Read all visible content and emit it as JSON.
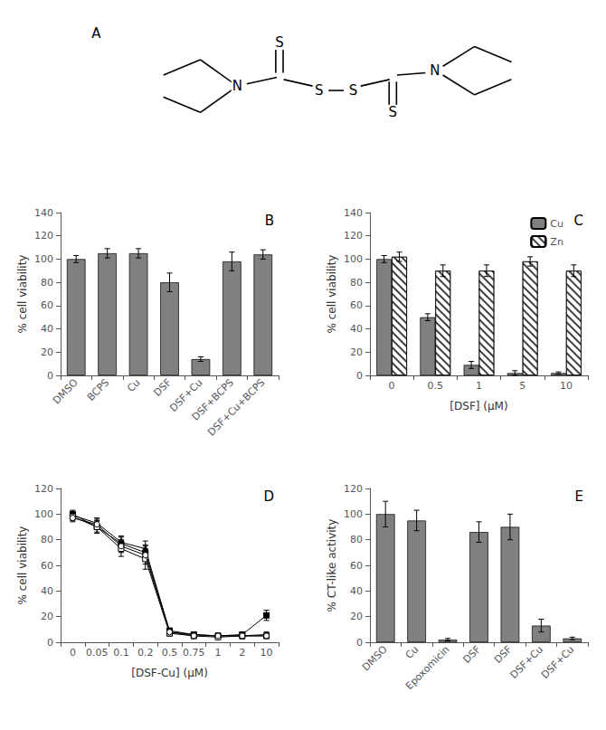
{
  "chart_data": [
    {
      "type": "structure",
      "title": "A",
      "annotations": [
        "N",
        "S",
        "S",
        "S",
        "S",
        "N"
      ]
    },
    {
      "type": "bar",
      "title": "B",
      "categories": [
        "DMSO",
        "BCPS",
        "Cu",
        "DSF",
        "DSF+Cu",
        "DSF+BCPS",
        "DSF+Cu+BCPS"
      ],
      "values": [
        100,
        105,
        105,
        80,
        14,
        98,
        104
      ],
      "errors": [
        3,
        4,
        4,
        8,
        2,
        8,
        4
      ],
      "color": "#808080",
      "ylabel": "% cell viability",
      "ylim": [
        0,
        140
      ],
      "yticks": [
        0,
        20,
        40,
        60,
        80,
        100,
        120,
        140
      ],
      "grid": false
    },
    {
      "type": "bar",
      "title": "C",
      "categories": [
        "0",
        "0.5",
        "1",
        "5",
        "10"
      ],
      "xlabel": "[DSF] (μM)",
      "ylabel": "% cell viability",
      "series": [
        {
          "name": "Cu",
          "color": "#808080",
          "values": [
            100,
            50,
            9,
            2,
            2
          ],
          "errors": [
            3,
            3,
            3,
            2,
            1
          ]
        },
        {
          "name": "Zn",
          "color": "#ffffff",
          "values": [
            102,
            90,
            90,
            98,
            90
          ],
          "errors": [
            4,
            5,
            5,
            4,
            5
          ]
        }
      ],
      "ylim": [
        0,
        140
      ],
      "yticks": [
        0,
        20,
        40,
        60,
        80,
        100,
        120,
        140
      ],
      "legend": "upper right",
      "grid": false
    },
    {
      "type": "line",
      "title": "D",
      "categories": [
        "0",
        "0.05",
        "0.1",
        "0.2",
        "0.5",
        "0.75",
        "1",
        "2",
        "10"
      ],
      "xlabel": "[DSF-Cu] (μM)",
      "ylabel": "% cell viability",
      "series": [
        {
          "color": "#000000",
          "marker": "circle_open",
          "values": [
            97,
            92,
            75,
            68,
            8,
            5,
            5,
            5,
            5
          ],
          "errors": [
            3,
            4,
            5,
            7,
            2,
            2,
            1,
            2,
            2
          ]
        },
        {
          "color": "#000000",
          "marker": "square_open",
          "values": [
            98,
            90,
            73,
            65,
            7,
            5,
            4,
            5,
            5
          ],
          "errors": [
            3,
            5,
            6,
            8,
            2,
            2,
            1,
            2,
            2
          ]
        },
        {
          "color": "#000000",
          "marker": "triangle",
          "values": [
            99,
            93,
            78,
            73,
            8,
            6,
            5,
            5,
            6
          ],
          "errors": [
            3,
            4,
            5,
            6,
            3,
            2,
            2,
            2,
            2
          ]
        },
        {
          "color": "#000000",
          "marker": "square",
          "values": [
            100,
            90,
            77,
            70,
            9,
            6,
            5,
            6,
            21
          ],
          "errors": [
            3,
            4,
            5,
            6,
            2,
            2,
            2,
            2,
            4
          ]
        }
      ],
      "ylim": [
        0,
        120
      ],
      "yticks": [
        0,
        20,
        40,
        60,
        80,
        100,
        120
      ],
      "grid": false
    },
    {
      "type": "bar",
      "title": "E",
      "categories": [
        "DMSO",
        "Cu",
        "Epoxomicin",
        "DSF",
        "DSF",
        "DSF+Cu",
        "DSF+Cu"
      ],
      "values": [
        100,
        95,
        2,
        86,
        90,
        13,
        3
      ],
      "errors": [
        10,
        8,
        1,
        8,
        10,
        5,
        1
      ],
      "color": "#808080",
      "ylabel": "% CT-like activity",
      "ylim": [
        0,
        120
      ],
      "yticks": [
        0,
        20,
        40,
        60,
        80,
        100,
        120
      ],
      "grid": false
    }
  ]
}
